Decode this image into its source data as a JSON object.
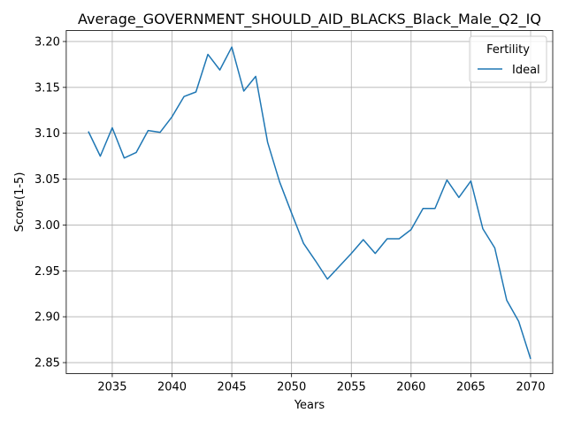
{
  "chart_data": {
    "type": "line",
    "title": "Average_GOVERNMENT_SHOULD_AID_BLACKS_Black_Male_Q2_IQ",
    "xlabel": "Years",
    "ylabel": "Score(1-5)",
    "xlim": [
      2031.15,
      2071.85
    ],
    "ylim": [
      2.838,
      3.212
    ],
    "xticks": [
      2035,
      2040,
      2045,
      2050,
      2055,
      2060,
      2065,
      2070
    ],
    "yticks": [
      2.85,
      2.9,
      2.95,
      3.0,
      3.05,
      3.1,
      3.15,
      3.2
    ],
    "grid": true,
    "legend": {
      "title": "Fertility",
      "placement": "top-right"
    },
    "series": [
      {
        "name": "Ideal",
        "color": "#1f77b4",
        "x": [
          2033,
          2034,
          2035,
          2036,
          2037,
          2038,
          2039,
          2040,
          2041,
          2042,
          2043,
          2044,
          2045,
          2046,
          2047,
          2048,
          2049,
          2050,
          2051,
          2052,
          2053,
          2054,
          2055,
          2056,
          2057,
          2058,
          2059,
          2060,
          2061,
          2062,
          2063,
          2064,
          2065,
          2066,
          2067,
          2068,
          2069,
          2070
        ],
        "y": [
          3.102,
          3.075,
          3.106,
          3.073,
          3.079,
          3.103,
          3.101,
          3.118,
          3.14,
          3.145,
          3.186,
          3.169,
          3.194,
          3.146,
          3.162,
          3.09,
          3.047,
          3.013,
          2.98,
          2.961,
          2.941,
          2.955,
          2.969,
          2.984,
          2.969,
          2.985,
          2.985,
          2.995,
          3.018,
          3.018,
          3.049,
          3.03,
          3.048,
          2.996,
          2.975,
          2.918,
          2.895,
          2.854
        ]
      }
    ]
  }
}
